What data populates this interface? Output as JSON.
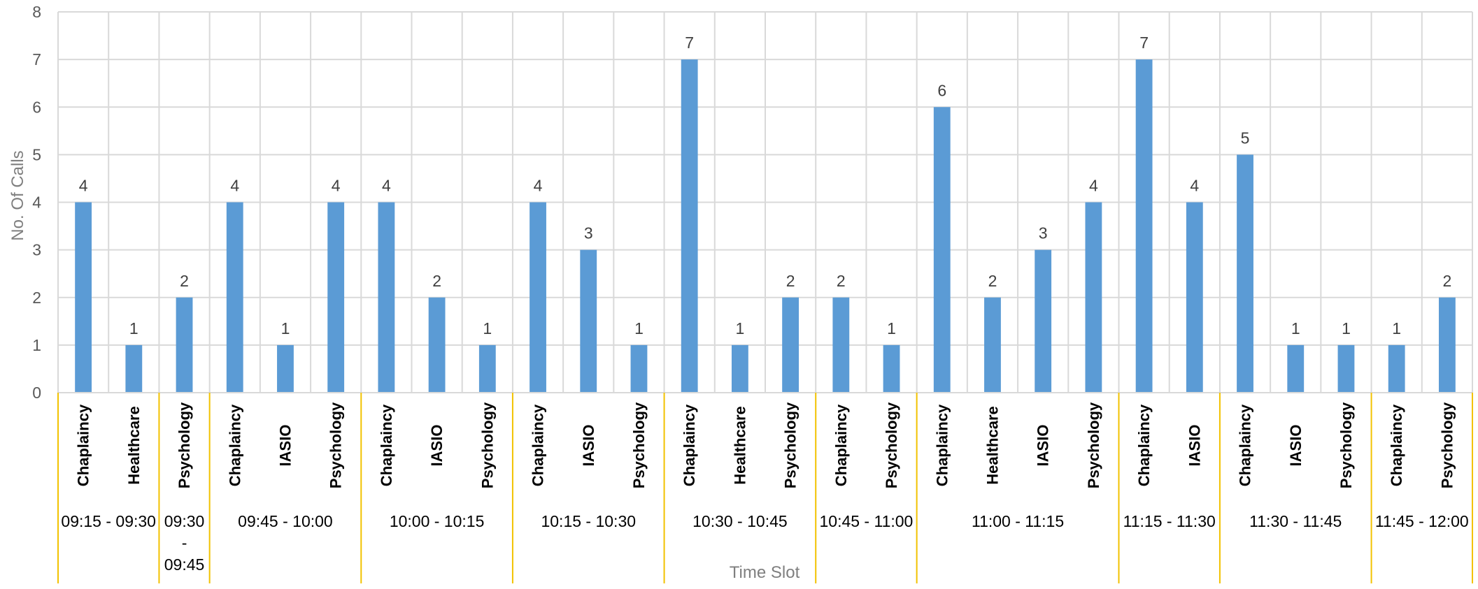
{
  "chart_data": {
    "type": "bar",
    "title": "",
    "xlabel": "Time Slot",
    "ylabel": "No. Of Calls",
    "ylim": [
      0,
      8
    ],
    "yticks": [
      0,
      1,
      2,
      3,
      4,
      5,
      6,
      7,
      8
    ],
    "grid": true,
    "legend": "none",
    "bar_color": "#5b9bd5",
    "groups": [
      {
        "label": "09:15 - 09:30",
        "categories": [
          "Chaplaincy",
          "Healthcare"
        ],
        "values": [
          4,
          1
        ]
      },
      {
        "label": "09:30 - 09:45",
        "categories": [
          "Psychology"
        ],
        "values": [
          2
        ]
      },
      {
        "label": "09:45 - 10:00",
        "categories": [
          "Chaplaincy",
          "IASIO",
          "Psychology"
        ],
        "values": [
          4,
          1,
          4
        ]
      },
      {
        "label": "10:00 - 10:15",
        "categories": [
          "Chaplaincy",
          "IASIO",
          "Psychology"
        ],
        "values": [
          4,
          2,
          1
        ]
      },
      {
        "label": "10:15 - 10:30",
        "categories": [
          "Chaplaincy",
          "IASIO",
          "Psychology"
        ],
        "values": [
          4,
          3,
          1
        ]
      },
      {
        "label": "10:30 - 10:45",
        "categories": [
          "Chaplaincy",
          "Healthcare",
          "Psychology"
        ],
        "values": [
          7,
          1,
          2
        ]
      },
      {
        "label": "10:45 - 11:00",
        "categories": [
          "Chaplaincy",
          "Psychology"
        ],
        "values": [
          2,
          1
        ]
      },
      {
        "label": "11:00 - 11:15",
        "categories": [
          "Chaplaincy",
          "Healthcare",
          "IASIO",
          "Psychology"
        ],
        "values": [
          6,
          2,
          3,
          4
        ]
      },
      {
        "label": "11:15 - 11:30",
        "categories": [
          "Chaplaincy",
          "IASIO"
        ],
        "values": [
          7,
          4
        ]
      },
      {
        "label": "11:30 - 11:45",
        "categories": [
          "Chaplaincy",
          "IASIO",
          "Psychology"
        ],
        "values": [
          5,
          1,
          1
        ]
      },
      {
        "label": "11:45 - 12:00",
        "categories": [
          "Chaplaincy",
          "Psychology"
        ],
        "values": [
          1,
          2
        ]
      }
    ]
  }
}
